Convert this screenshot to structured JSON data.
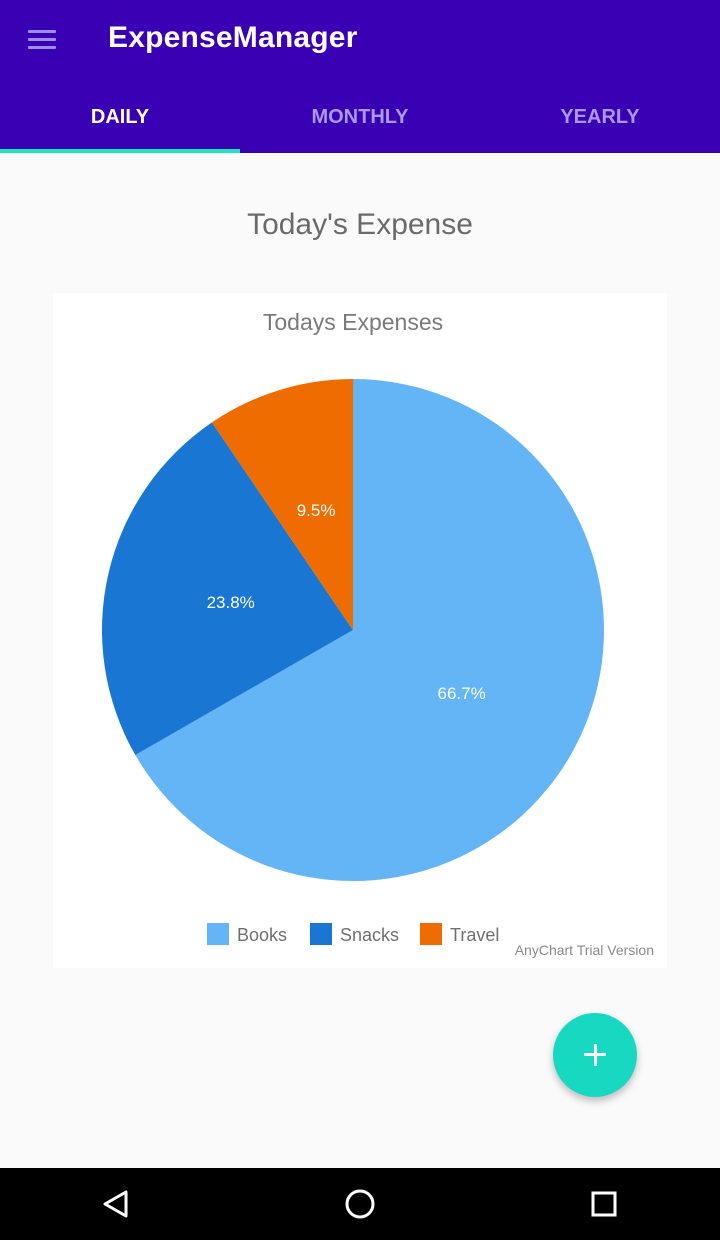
{
  "app": {
    "title": "ExpenseManager",
    "menu_icon": "hamburger-menu-icon"
  },
  "tabs": [
    {
      "label": "DAILY",
      "active": true
    },
    {
      "label": "MONTHLY",
      "active": false
    },
    {
      "label": "YEARLY",
      "active": false
    }
  ],
  "page": {
    "section_title": "Today's Expense",
    "fab_icon": "plus-icon"
  },
  "chart_data": {
    "type": "pie",
    "title": "Todays Expenses",
    "categories": [
      "Books",
      "Snacks",
      "Travel"
    ],
    "values": [
      66.7,
      23.8,
      9.5
    ],
    "labels": [
      "66.7%",
      "23.8%",
      "9.5%"
    ],
    "colors": [
      "#64b5f6",
      "#1976d2",
      "#ef6c00"
    ],
    "legend_position": "bottom",
    "watermark": "AnyChart Trial Version"
  },
  "navbar": {
    "icons": [
      "back-triangle-icon",
      "home-circle-icon",
      "recents-square-icon"
    ]
  },
  "colors": {
    "primary": "#3a00b3",
    "accent": "#1de9b6",
    "fab": "#17d9c2"
  }
}
